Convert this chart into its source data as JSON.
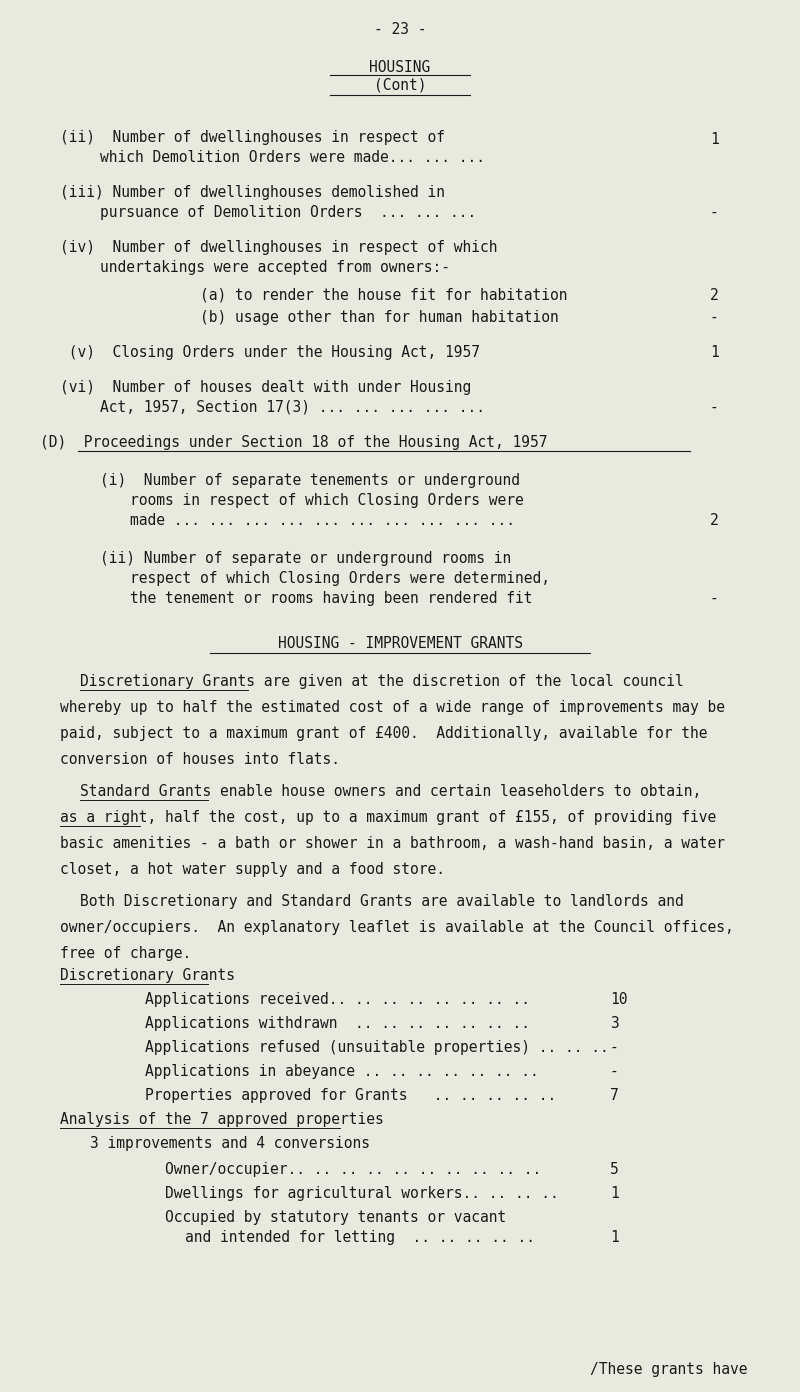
{
  "bg_color": "#e8eae0",
  "text_color": "#1a1a1a",
  "font_size": 10.5,
  "page_number": "- 23 -",
  "title1": "HOUSING",
  "title2": "(Cont)",
  "section2_title": "HOUSING - IMPROVEMENT GRANTS",
  "disc_grants_label": "Discretionary Grants",
  "analysis_label": "Analysis of the 7 approved properties",
  "analysis_sub": "3 improvements and 4 conversions",
  "footer": "/These grants have"
}
